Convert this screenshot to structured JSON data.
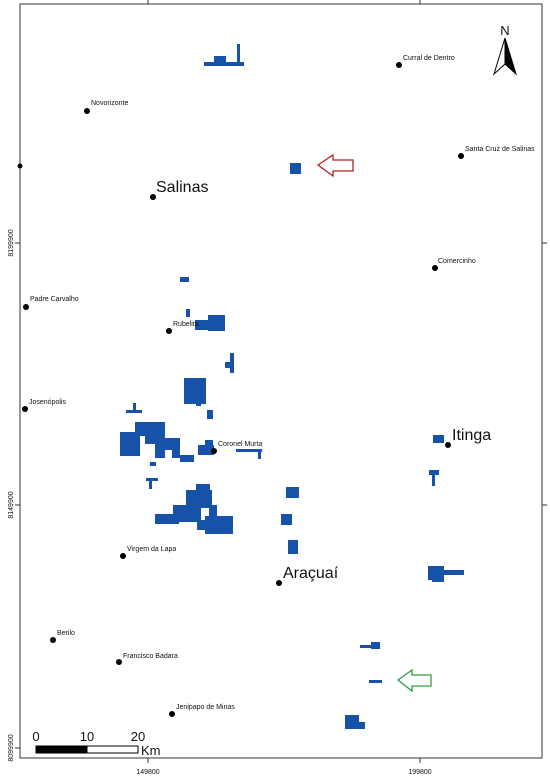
{
  "places": [
    {
      "name": "Curral de Dentro"
    },
    {
      "name": "Novorizonte"
    },
    {
      "name": "Santa Cruz de Salinas"
    },
    {
      "name": "Salinas"
    },
    {
      "name": "Comercinho"
    },
    {
      "name": "Padre Carvalho"
    },
    {
      "name": "Rubelita"
    },
    {
      "name": "Josenópolis"
    },
    {
      "name": "Coronel Murta"
    },
    {
      "name": "Itinga"
    },
    {
      "name": "Virgem da Lapa"
    },
    {
      "name": "Araçuaí"
    },
    {
      "name": "Berilo"
    },
    {
      "name": "Francisco Badara"
    },
    {
      "name": "Jenipapo de Minas"
    }
  ],
  "axes": {
    "x_ticks": [
      "149800",
      "199800"
    ],
    "y_ticks": [
      "8199900",
      "8149900",
      "8099900"
    ]
  },
  "scale_bar": {
    "labels": [
      "0",
      "10",
      "20"
    ],
    "unit": "Km"
  },
  "north_arrow": {
    "label": "N"
  },
  "arrows": [
    {
      "name": "red-arrow",
      "color": "#b22222",
      "direction": "left"
    },
    {
      "name": "green-arrow",
      "color": "#2e9e3a",
      "direction": "left"
    }
  ],
  "colors": {
    "area": "#1552a8",
    "frame": "#333333"
  }
}
